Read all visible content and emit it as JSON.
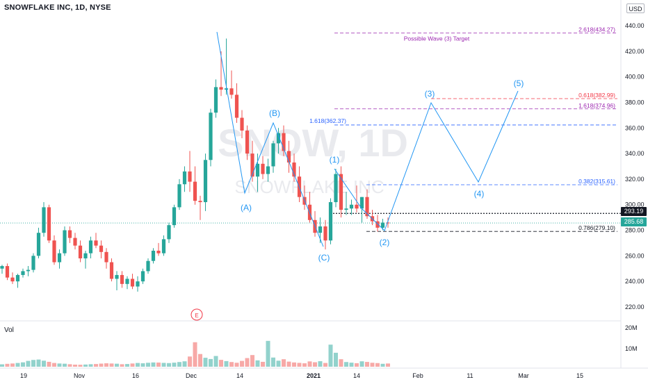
{
  "header": {
    "title": "SNOWFLAKE INC, 1D, NYSE",
    "currency": "USD"
  },
  "watermark": {
    "symbol": "SNOW, 1D",
    "company": "SNOWFLAKE INC"
  },
  "volume": {
    "label": "Vol",
    "axis_ticks": [
      "20M",
      "10M"
    ]
  },
  "price_axis": {
    "ticks": [
      "440.00",
      "420.00",
      "400.00",
      "380.00",
      "360.00",
      "340.00",
      "320.00",
      "300.00",
      "280.00",
      "260.00",
      "240.00",
      "220.00"
    ],
    "last_price": "285.68",
    "crosshair_price": "293.19",
    "last_price_color": "#26a69a"
  },
  "time_axis": {
    "labels": [
      "19",
      "Nov",
      "16",
      "Dec",
      "14",
      "2021",
      "14",
      "Feb",
      "11",
      "Mar",
      "15"
    ]
  },
  "annotations": {
    "fib_levels": [
      {
        "text": "2.618(434.27)",
        "color": "#9c27b0"
      },
      {
        "text": "0.618(382.99)",
        "color": "#f23645"
      },
      {
        "text": "1.618(374.96)",
        "color": "#9c27b0"
      },
      {
        "text": "1.618(362.37)",
        "color": "#2962ff"
      },
      {
        "text": "0.382(315.61)",
        "color": "#2962ff"
      },
      {
        "text": "0.786(279.10)",
        "color": "#131722"
      }
    ],
    "target_note": "Possible Wave (3) Target",
    "wave_labels": [
      "(A)",
      "(B)",
      "(C)",
      "(1)",
      "(2)",
      "(3)",
      "(4)",
      "(5)"
    ],
    "earnings_marker": "E"
  },
  "colors": {
    "up": "#26a69a",
    "down": "#ef5350",
    "wave": "#2196f3"
  },
  "chart_data": {
    "type": "candlestick",
    "y_range": [
      214,
      446
    ],
    "candles": [
      [
        250,
        253,
        246,
        252
      ],
      [
        252,
        254,
        241,
        243
      ],
      [
        243,
        247,
        238,
        240
      ],
      [
        240,
        246,
        235,
        245
      ],
      [
        245,
        250,
        243,
        248
      ],
      [
        248,
        252,
        244,
        249
      ],
      [
        249,
        262,
        247,
        260
      ],
      [
        260,
        282,
        258,
        278
      ],
      [
        278,
        302,
        275,
        298
      ],
      [
        298,
        300,
        270,
        272
      ],
      [
        272,
        276,
        253,
        255
      ],
      [
        255,
        265,
        250,
        262
      ],
      [
        262,
        283,
        260,
        280
      ],
      [
        280,
        283,
        270,
        274
      ],
      [
        274,
        278,
        265,
        268
      ],
      [
        268,
        272,
        255,
        258
      ],
      [
        258,
        264,
        250,
        262
      ],
      [
        262,
        275,
        258,
        272
      ],
      [
        272,
        278,
        266,
        268
      ],
      [
        268,
        272,
        258,
        263
      ],
      [
        263,
        266,
        250,
        255
      ],
      [
        255,
        258,
        240,
        242
      ],
      [
        242,
        248,
        233,
        245
      ],
      [
        245,
        248,
        235,
        238
      ],
      [
        238,
        244,
        234,
        242
      ],
      [
        242,
        246,
        234,
        236
      ],
      [
        236,
        244,
        232,
        240
      ],
      [
        240,
        250,
        238,
        248
      ],
      [
        248,
        258,
        246,
        256
      ],
      [
        256,
        266,
        254,
        264
      ],
      [
        264,
        270,
        260,
        262
      ],
      [
        262,
        276,
        260,
        273
      ],
      [
        273,
        286,
        270,
        284
      ],
      [
        284,
        300,
        282,
        298
      ],
      [
        298,
        320,
        296,
        316
      ],
      [
        316,
        330,
        310,
        326
      ],
      [
        326,
        342,
        310,
        318
      ],
      [
        318,
        330,
        300,
        303
      ],
      [
        303,
        307,
        288,
        302
      ],
      [
        302,
        340,
        295,
        335
      ],
      [
        335,
        375,
        330,
        372
      ],
      [
        372,
        398,
        368,
        392
      ],
      [
        392,
        420,
        385,
        390
      ],
      [
        390,
        430,
        386,
        391
      ],
      [
        391,
        405,
        383,
        386
      ],
      [
        386,
        395,
        364,
        368
      ],
      [
        368,
        374,
        352,
        358
      ],
      [
        358,
        362,
        335,
        340
      ],
      [
        340,
        350,
        318,
        322
      ],
      [
        322,
        340,
        310,
        332
      ],
      [
        332,
        338,
        320,
        324
      ],
      [
        324,
        336,
        318,
        330
      ],
      [
        330,
        350,
        325,
        348
      ],
      [
        348,
        360,
        340,
        356
      ],
      [
        356,
        362,
        338,
        342
      ],
      [
        342,
        350,
        325,
        333
      ],
      [
        333,
        340,
        318,
        322
      ],
      [
        322,
        330,
        302,
        306
      ],
      [
        306,
        315,
        296,
        300
      ],
      [
        300,
        310,
        286,
        288
      ],
      [
        288,
        295,
        275,
        278
      ],
      [
        278,
        290,
        270,
        283
      ],
      [
        283,
        288,
        265,
        272
      ],
      [
        272,
        305,
        269,
        302
      ],
      [
        302,
        328,
        298,
        324
      ],
      [
        324,
        330,
        290,
        296
      ],
      [
        296,
        310,
        292,
        297
      ],
      [
        297,
        304,
        292,
        300
      ],
      [
        300,
        315,
        294,
        297
      ],
      [
        297,
        306,
        286,
        306
      ],
      [
        306,
        312,
        289,
        291
      ],
      [
        291,
        296,
        284,
        287
      ],
      [
        287,
        292,
        279,
        282
      ],
      [
        282,
        289,
        280,
        286
      ],
      [
        286,
        290,
        282,
        285.68
      ]
    ],
    "volume_millions": [
      2.3,
      2.8,
      3.1,
      3.6,
      4.2,
      5.6,
      6.5,
      6.9,
      5.8,
      4.7,
      3.6,
      3.1,
      2.9,
      2.4,
      2.0,
      1.9,
      2.1,
      2.4,
      2.6,
      3.0,
      3.3,
      3.1,
      2.9,
      2.4,
      2.6,
      3.1,
      3.6,
      3.3,
      3.8,
      4.1,
      4.0,
      3.7,
      3.5,
      3.9,
      4.5,
      5.2,
      9.8,
      23.5,
      12.2,
      8.6,
      7.4,
      10.3,
      6.6,
      5.4,
      4.5,
      3.8,
      5.6,
      8.3,
      11.2,
      6.1,
      4.7,
      24.8,
      8.8,
      5.8,
      7.2,
      4.9,
      4.1,
      3.7,
      3.3,
      5.1,
      4.3,
      5.3,
      3.6,
      21.2,
      13.4,
      7.2,
      4.5,
      3.9,
      3.4,
      5.2,
      4.6,
      3.8,
      3.5,
      2.8,
      3.1
    ],
    "x_axis_labels": [
      "19",
      "Nov",
      "16",
      "Dec",
      "14",
      "2021",
      "14",
      "Feb",
      "11",
      "Mar",
      "15"
    ],
    "y_axis_label": "USD"
  }
}
